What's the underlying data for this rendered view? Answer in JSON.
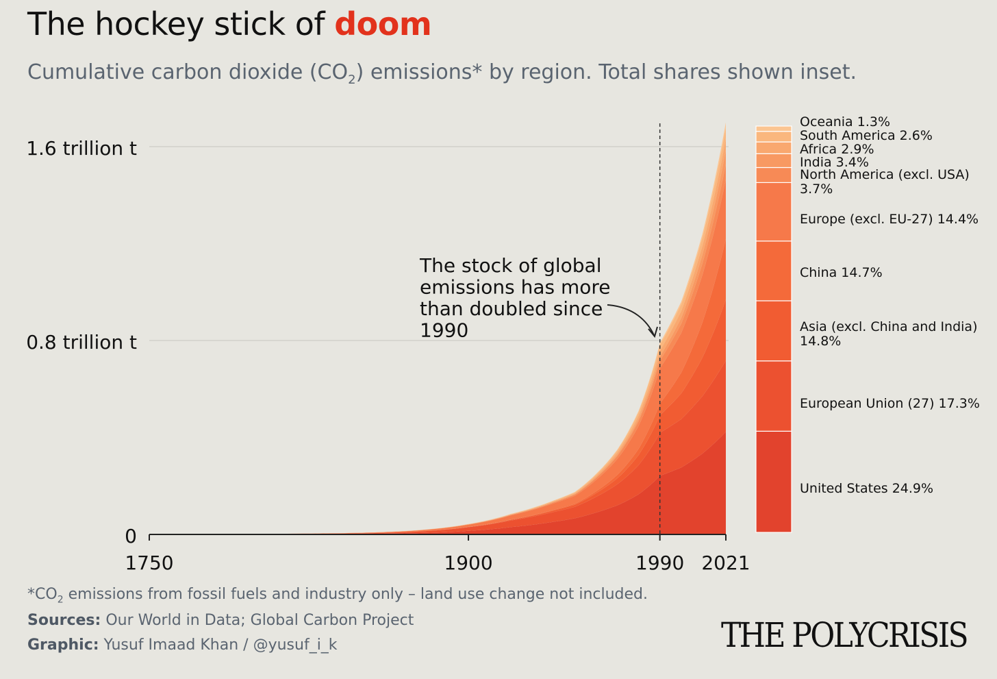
{
  "header": {
    "title_prefix": "The hockey stick of",
    "title_accent": "doom",
    "subtitle_pre": "Cumulative carbon dioxide (CO",
    "subtitle_sub": "2",
    "subtitle_post": ") emissions* by region. Total shares shown inset."
  },
  "chart_data": {
    "type": "area",
    "stacked": true,
    "title": "The hockey stick of doom",
    "x": [
      1750,
      1800,
      1850,
      1870,
      1900,
      1920,
      1940,
      1950,
      1960,
      1970,
      1980,
      1990,
      2000,
      2010,
      2021
    ],
    "y_ticks": [
      {
        "value": 0,
        "label": "0"
      },
      {
        "value": 0.8,
        "label": "0.8 trillion t"
      },
      {
        "value": 1.6,
        "label": "1.6 trillion t"
      }
    ],
    "x_ticks": [
      1750,
      1900,
      1990,
      2021
    ],
    "ylim": [
      0,
      1.7
    ],
    "totals": [
      0,
      0.002,
      0.007,
      0.014,
      0.043,
      0.085,
      0.14,
      0.175,
      0.25,
      0.35,
      0.51,
      0.79,
      0.96,
      1.24,
      1.7
    ],
    "series": [
      {
        "name": "United States",
        "share": 24.9,
        "color": "#e2432d"
      },
      {
        "name": "European Union (27)",
        "share": 17.3,
        "color": "#ec5130"
      },
      {
        "name": "Asia (excl. China and India)",
        "share": 14.8,
        "color": "#f15c32"
      },
      {
        "name": "China",
        "share": 14.7,
        "color": "#f46a3a"
      },
      {
        "name": "Europe (excl. EU-27)",
        "share": 14.4,
        "color": "#f6794a"
      },
      {
        "name": "North America (excl. USA)",
        "share": 3.7,
        "color": "#f78a56"
      },
      {
        "name": "India",
        "share": 3.4,
        "color": "#f89962"
      },
      {
        "name": "Africa",
        "share": 2.9,
        "color": "#f9a86f"
      },
      {
        "name": "South America",
        "share": 2.6,
        "color": "#fab77e"
      },
      {
        "name": "Oceania",
        "share": 1.3,
        "color": "#fbc592"
      }
    ],
    "fractions": {
      "x": [
        1750,
        1900,
        1950,
        1990,
        2021
      ],
      "United States": [
        0.15,
        0.34,
        0.38,
        0.3,
        0.249
      ],
      "European Union (27)": [
        0.4,
        0.36,
        0.27,
        0.22,
        0.173
      ],
      "Asia (excl. China and India)": [
        0.02,
        0.02,
        0.05,
        0.09,
        0.148
      ],
      "China": [
        0.01,
        0.01,
        0.02,
        0.06,
        0.147
      ],
      "Europe (excl. EU-27)": [
        0.38,
        0.21,
        0.19,
        0.18,
        0.144
      ],
      "North America (excl. USA)": [
        0.01,
        0.02,
        0.03,
        0.04,
        0.037
      ],
      "India": [
        0.01,
        0.01,
        0.01,
        0.02,
        0.034
      ],
      "Africa": [
        0.01,
        0.01,
        0.02,
        0.03,
        0.029
      ],
      "South America": [
        0.0,
        0.01,
        0.02,
        0.03,
        0.026
      ],
      "Oceania": [
        0.01,
        0.01,
        0.01,
        0.01,
        0.013
      ]
    },
    "marker_year": 1990,
    "annotation": [
      "The stock of global",
      "emissions has more",
      "than doubled since",
      "1990"
    ]
  },
  "legend_labels": [
    {
      "lines": [
        "United States 24.9%"
      ]
    },
    {
      "lines": [
        "European Union (27) 17.3%"
      ]
    },
    {
      "lines": [
        "Asia (excl. China and India)",
        "14.8%"
      ]
    },
    {
      "lines": [
        "China 14.7%"
      ]
    },
    {
      "lines": [
        "Europe (excl. EU-27) 14.4%"
      ]
    },
    {
      "lines": [
        "North America (excl. USA)",
        "3.7%"
      ]
    },
    {
      "lines": [
        "India 3.4%"
      ]
    },
    {
      "lines": [
        "Africa 2.9%"
      ]
    },
    {
      "lines": [
        "South America 2.6%"
      ]
    },
    {
      "lines": [
        "Oceania 1.3%"
      ]
    }
  ],
  "footer": {
    "note_pre": "*CO",
    "note_sub": "2",
    "note_post": " emissions from fossil fuels and industry only – land use change not included.",
    "sources_label": "Sources:",
    "sources_text": " Our World in Data; Global Carbon Project",
    "graphic_label": "Graphic:",
    "graphic_text": " Yusuf Imaad Khan / @yusuf_i_k",
    "brand": "THE POLYCRISIS"
  }
}
